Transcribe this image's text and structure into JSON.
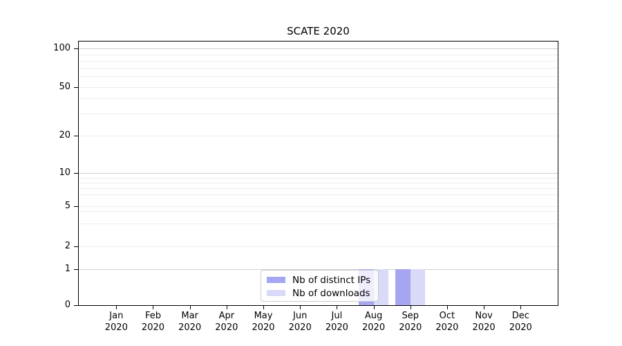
{
  "chart_data": {
    "type": "bar",
    "title": "SCATE 2020",
    "categories": [
      "Jan 2020",
      "Feb 2020",
      "Mar 2020",
      "Apr 2020",
      "May 2020",
      "Jun 2020",
      "Jul 2020",
      "Aug 2020",
      "Sep 2020",
      "Oct 2020",
      "Nov 2020",
      "Dec 2020"
    ],
    "series": [
      {
        "name": "Nb of distinct IPs",
        "color": "#a5a5f1",
        "values": [
          0,
          0,
          0,
          0,
          0,
          0,
          0,
          1,
          1,
          0,
          0,
          0
        ]
      },
      {
        "name": "Nb of downloads",
        "color": "#d9d9f8",
        "values": [
          0,
          0,
          0,
          0,
          0,
          0,
          0,
          1,
          1,
          0,
          0,
          0
        ]
      }
    ],
    "xlabel": "",
    "ylabel": "",
    "y_ticks": [
      0,
      1,
      2,
      5,
      10,
      20,
      50,
      100
    ],
    "y_minor_gridline_values": [
      3,
      4,
      6,
      7,
      8,
      9,
      30,
      40,
      60,
      70,
      80,
      90
    ],
    "ylim": [
      0,
      110
    ],
    "yscale": "log above 1, linear 0-1",
    "grid": "horizontal",
    "legend_position": "inside-bottom-center"
  },
  "colors": {
    "background": "#ffffff",
    "axis": "#000000",
    "major_grid": "#cfcfcf",
    "minor_grid": "#ececec",
    "legend_border": "#cccccc",
    "bar_distinct_ips": "#a5a5f1",
    "bar_downloads": "#d9d9f8"
  }
}
